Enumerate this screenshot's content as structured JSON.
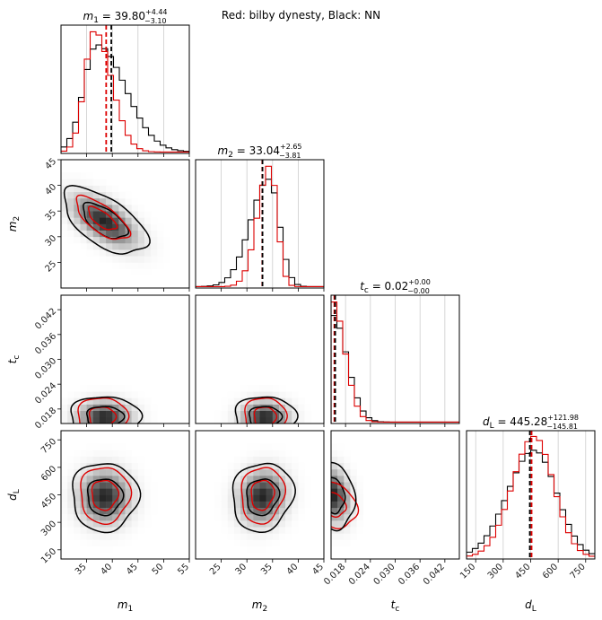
{
  "figure": {
    "suptitle": "Red: bilby dynesty, Black: NN"
  },
  "colors": {
    "series_a": "#000000",
    "series_b": "#dd0000",
    "grid": "#cccccc"
  },
  "chart_data": {
    "type": "corner",
    "series": [
      {
        "name": "NN",
        "color": "#000000"
      },
      {
        "name": "bilby dynesty",
        "color": "#dd0000"
      }
    ],
    "params": [
      {
        "key": "m1",
        "sym": "m",
        "sub": "1",
        "title_value": "39.80",
        "err_up": "+4.44",
        "err_down": "−3.10",
        "range": [
          30,
          55
        ],
        "ticks": [
          35,
          40,
          45,
          50,
          55
        ],
        "median_nn": 39.8,
        "median_bilby": 38.8,
        "mode_nn": 37.0,
        "mode_bilby": 36.5,
        "sig_nn_left": 2.6,
        "sig_nn_right": 5.5,
        "sig_b_left": 1.9,
        "sig_b_right": 3.3
      },
      {
        "key": "m2",
        "sym": "m",
        "sub": "2",
        "title_value": "33.04",
        "err_up": "+2.65",
        "err_down": "−3.81",
        "range": [
          20,
          45
        ],
        "ticks": [
          25,
          30,
          35,
          40,
          45
        ],
        "axis_ticks": [
          25,
          30,
          35,
          40,
          45
        ],
        "median_nn": 33.04,
        "median_bilby": 33.0,
        "mode_nn": 34.3,
        "mode_bilby": 34.5,
        "sig_nn_left": 3.6,
        "sig_nn_right": 2.0,
        "sig_b_left": 2.4,
        "sig_b_right": 1.4
      },
      {
        "key": "tc",
        "sym": "t",
        "sub": "c",
        "title_value": "0.02",
        "err_up": "+0.00",
        "err_down": "−0.00",
        "range": [
          0.0145,
          0.0455
        ],
        "ticks": [
          0.018,
          0.024,
          0.03,
          0.036,
          0.042
        ],
        "decimals": 3,
        "median_nn": 0.0155,
        "median_bilby": 0.0153,
        "mode_nn": 0.0148,
        "mode_bilby": 0.0148,
        "sig_nn_left": 0.0003,
        "sig_nn_right": 0.0035,
        "sig_b_left": 0.0003,
        "sig_b_right": 0.003
      },
      {
        "key": "dL",
        "sym": "d",
        "sub": "L",
        "title_value": "445.28",
        "err_up": "+121.98",
        "err_down": "−145.81",
        "range": [
          100,
          800
        ],
        "ticks": [
          150,
          300,
          450,
          600,
          750
        ],
        "median_nn": 445.28,
        "median_bilby": 455.0,
        "mode_nn": 470,
        "mode_bilby": 470,
        "sig_nn_left": 145,
        "sig_nn_right": 122,
        "sig_b_left": 120,
        "sig_b_right": 105
      }
    ],
    "pairs": [
      {
        "x": "m1",
        "y": "m2",
        "nn": {
          "cx": 38.5,
          "cy": 33.0,
          "sx": 4.8,
          "sy": 3.8,
          "rho": -0.6
        },
        "bilby": {
          "cx": 38.0,
          "cy": 33.5,
          "sx": 3.2,
          "sy": 2.6,
          "rho": -0.7
        }
      },
      {
        "x": "m1",
        "y": "tc",
        "nn": {
          "cx": 38.5,
          "cy": 0.016,
          "sx": 4.0,
          "sy": 0.003,
          "rho": 0
        },
        "bilby": {
          "cx": 38.0,
          "cy": 0.016,
          "sx": 3.0,
          "sy": 0.003,
          "rho": 0
        }
      },
      {
        "x": "m2",
        "y": "tc",
        "nn": {
          "cx": 33.5,
          "cy": 0.016,
          "sx": 3.5,
          "sy": 0.003,
          "rho": 0
        },
        "bilby": {
          "cx": 33.5,
          "cy": 0.016,
          "sx": 2.5,
          "sy": 0.003,
          "rho": 0
        }
      },
      {
        "x": "m1",
        "y": "dL",
        "nn": {
          "cx": 38.5,
          "cy": 440,
          "sx": 3.8,
          "sy": 110,
          "rho": 0
        },
        "bilby": {
          "cx": 38.5,
          "cy": 450,
          "sx": 3.0,
          "sy": 95,
          "rho": 0
        }
      },
      {
        "x": "m2",
        "y": "dL",
        "nn": {
          "cx": 33.0,
          "cy": 440,
          "sx": 3.5,
          "sy": 110,
          "rho": 0.1
        },
        "bilby": {
          "cx": 33.0,
          "cy": 450,
          "sx": 2.6,
          "sy": 95,
          "rho": 0.1
        }
      },
      {
        "x": "tc",
        "y": "dL",
        "nn": {
          "cx": 0.015,
          "cy": 450,
          "sx": 0.003,
          "sy": 110,
          "rho": -0.2
        },
        "bilby": {
          "cx": 0.015,
          "cy": 400,
          "sx": 0.0035,
          "sy": 80,
          "rho": -0.3
        }
      }
    ],
    "grid": true,
    "legend": "none"
  }
}
